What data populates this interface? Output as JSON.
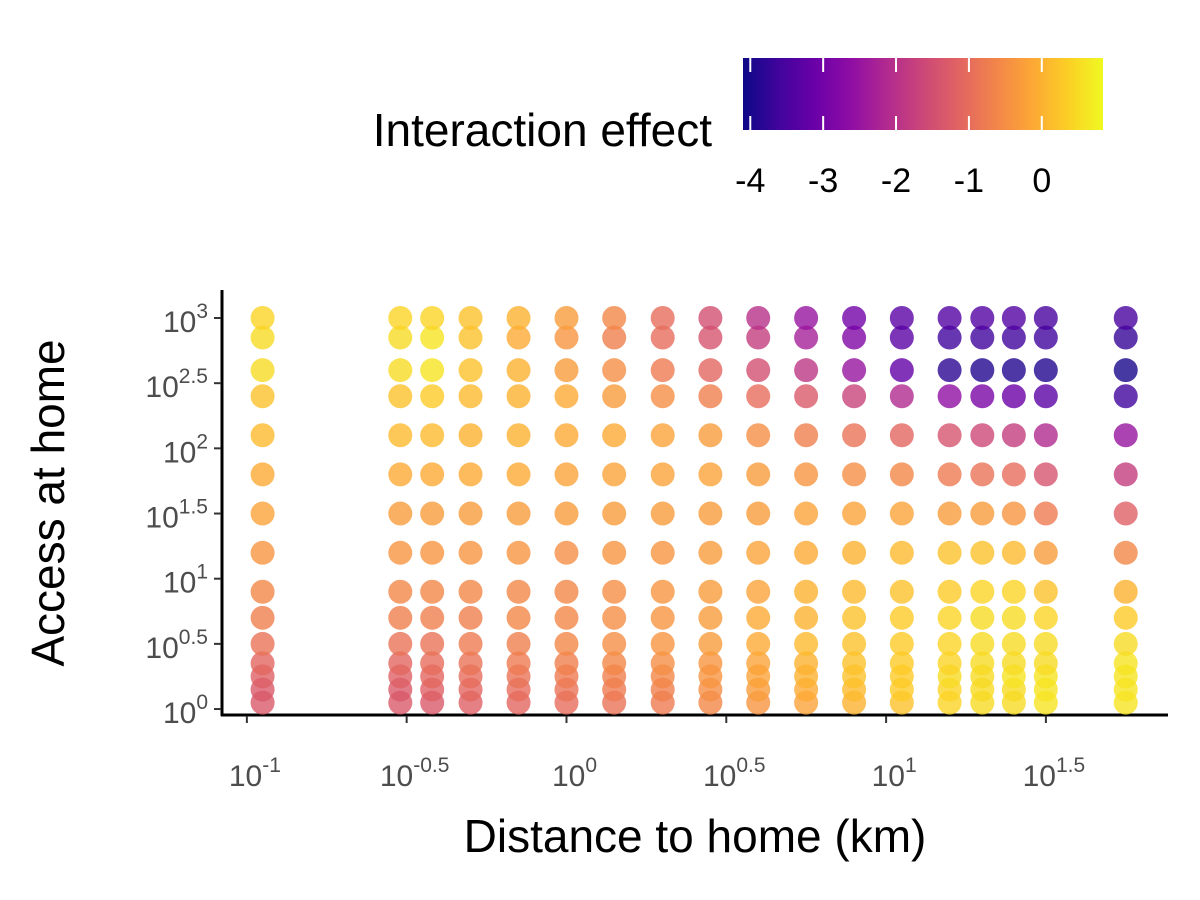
{
  "chart_data": {
    "type": "heatmap-scatter",
    "x_label": "Distance to home (km)",
    "y_label": "Access at home",
    "legend_title": "Interaction effect",
    "xscale": "log",
    "yscale": "log",
    "colormap": "plasma",
    "xlim": [
      0.0836,
      76.2
    ],
    "ylim": [
      0.9,
      1640
    ],
    "xticks": [
      {
        "value": 0.1,
        "label": "10",
        "exponent": "-1"
      },
      {
        "value": 0.3162,
        "label": "10",
        "exponent": "-0.5"
      },
      {
        "value": 1,
        "label": "10",
        "exponent": "0"
      },
      {
        "value": 3.162,
        "label": "10",
        "exponent": "0.5"
      },
      {
        "value": 10,
        "label": "10",
        "exponent": "1"
      },
      {
        "value": 31.62,
        "label": "10",
        "exponent": "1.5"
      }
    ],
    "yticks": [
      {
        "value": 1,
        "label": "10",
        "exponent": "0"
      },
      {
        "value": 3.162,
        "label": "10",
        "exponent": "0.5"
      },
      {
        "value": 10,
        "label": "10",
        "exponent": "1"
      },
      {
        "value": 31.62,
        "label": "10",
        "exponent": "1.5"
      },
      {
        "value": 100,
        "label": "10",
        "exponent": "2"
      },
      {
        "value": 316.2,
        "label": "10",
        "exponent": "2.5"
      },
      {
        "value": 1000,
        "label": "10",
        "exponent": "3"
      }
    ],
    "colorlim": [
      -4.1,
      0.84
    ],
    "colorticks": [
      -4,
      -3,
      -2,
      -1,
      0
    ],
    "x": [
      0.112,
      0.302,
      0.38,
      0.501,
      0.708,
      1,
      1.41,
      2,
      2.82,
      3.98,
      5.62,
      7.94,
      11.2,
      15.8,
      20,
      25.1,
      31.6,
      56.2
    ],
    "y": [
      1.12,
      1.41,
      1.78,
      2.24,
      3.16,
      5.01,
      7.94,
      15.8,
      31.6,
      63.1,
      126,
      251,
      398,
      708,
      1000
    ],
    "z": [
      [
        -1.3,
        -1.3,
        -1.3,
        -1.2,
        -1.1,
        -1,
        -0.9,
        -0.8,
        -0.6,
        -0.4,
        -0.2,
        0,
        0.2,
        0.4,
        0.5,
        0.5,
        0.6,
        0.6
      ],
      [
        -1.3,
        -1.3,
        -1.2,
        -1.1,
        -1,
        -0.9,
        -0.8,
        -0.7,
        -0.5,
        -0.3,
        -0.1,
        0.1,
        0.3,
        0.4,
        0.5,
        0.5,
        0.6,
        0.6
      ],
      [
        -1.2,
        -1.2,
        -1.1,
        -1,
        -0.9,
        -0.8,
        -0.7,
        -0.6,
        -0.4,
        -0.2,
        0,
        0.2,
        0.3,
        0.5,
        0.5,
        0.6,
        0.6,
        0.6
      ],
      [
        -1.1,
        -1.1,
        -1,
        -0.9,
        -0.8,
        -0.7,
        -0.6,
        -0.5,
        -0.4,
        -0.2,
        0,
        0.2,
        0.3,
        0.4,
        0.5,
        0.5,
        0.5,
        0.6
      ],
      [
        -0.9,
        -0.9,
        -0.9,
        -0.8,
        -0.7,
        -0.6,
        -0.5,
        -0.4,
        -0.3,
        -0.1,
        0.1,
        0.2,
        0.3,
        0.4,
        0.5,
        0.5,
        0.5,
        0.5
      ],
      [
        -0.7,
        -0.7,
        -0.7,
        -0.7,
        -0.6,
        -0.6,
        -0.5,
        -0.4,
        -0.3,
        -0.1,
        0,
        0.2,
        0.3,
        0.4,
        0.5,
        0.5,
        0.4,
        0.3
      ],
      [
        -0.6,
        -0.6,
        -0.6,
        -0.6,
        -0.6,
        -0.6,
        -0.5,
        -0.4,
        -0.3,
        -0.2,
        0,
        0.1,
        0.2,
        0.3,
        0.4,
        0.4,
        0.2,
        0
      ],
      [
        -0.4,
        -0.4,
        -0.4,
        -0.4,
        -0.4,
        -0.5,
        -0.4,
        -0.4,
        -0.3,
        -0.2,
        -0.1,
        0,
        0.1,
        0.2,
        0.2,
        0.1,
        -0.3,
        -0.6
      ],
      [
        -0.2,
        -0.3,
        -0.3,
        -0.3,
        -0.3,
        -0.3,
        -0.3,
        -0.3,
        -0.3,
        -0.3,
        -0.2,
        -0.2,
        -0.2,
        -0.3,
        -0.3,
        -0.4,
        -0.8,
        -1.2
      ],
      [
        -0.1,
        -0.1,
        -0.1,
        -0.1,
        -0.1,
        -0.2,
        -0.2,
        -0.2,
        -0.2,
        -0.3,
        -0.4,
        -0.5,
        -0.6,
        -0.8,
        -0.9,
        -1,
        -1.4,
        -1.8
      ],
      [
        0.1,
        0.1,
        0.1,
        0,
        0,
        -0.1,
        -0.1,
        -0.2,
        -0.3,
        -0.5,
        -0.7,
        -0.9,
        -1.1,
        -1.4,
        -1.6,
        -1.8,
        -2.1,
        -2.5
      ],
      [
        0.2,
        0.2,
        0.3,
        0.1,
        0,
        -0.1,
        -0.3,
        -0.5,
        -0.7,
        -1,
        -1.3,
        -1.7,
        -2.1,
        -2.6,
        -2.9,
        -3.1,
        -3.3,
        -3.6
      ],
      [
        0.5,
        0.5,
        0.6,
        0.2,
        0,
        -0.3,
        -0.5,
        -0.8,
        -1.1,
        -1.5,
        -1.9,
        -2.5,
        -3.2,
        -3.8,
        -3.9,
        -3.9,
        -3.9,
        -4
      ],
      [
        0.5,
        0.5,
        0.6,
        0.2,
        -0.1,
        -0.4,
        -0.7,
        -1,
        -1.4,
        -1.8,
        -2.3,
        -2.8,
        -3.3,
        -3.6,
        -3.6,
        -3.6,
        -3.6,
        -3.7
      ],
      [
        0.4,
        0.4,
        0.4,
        0.2,
        0,
        -0.3,
        -0.6,
        -1,
        -1.5,
        -2,
        -2.5,
        -3,
        -3.3,
        -3.4,
        -3.4,
        -3.4,
        -3.5,
        -3.5
      ]
    ]
  }
}
